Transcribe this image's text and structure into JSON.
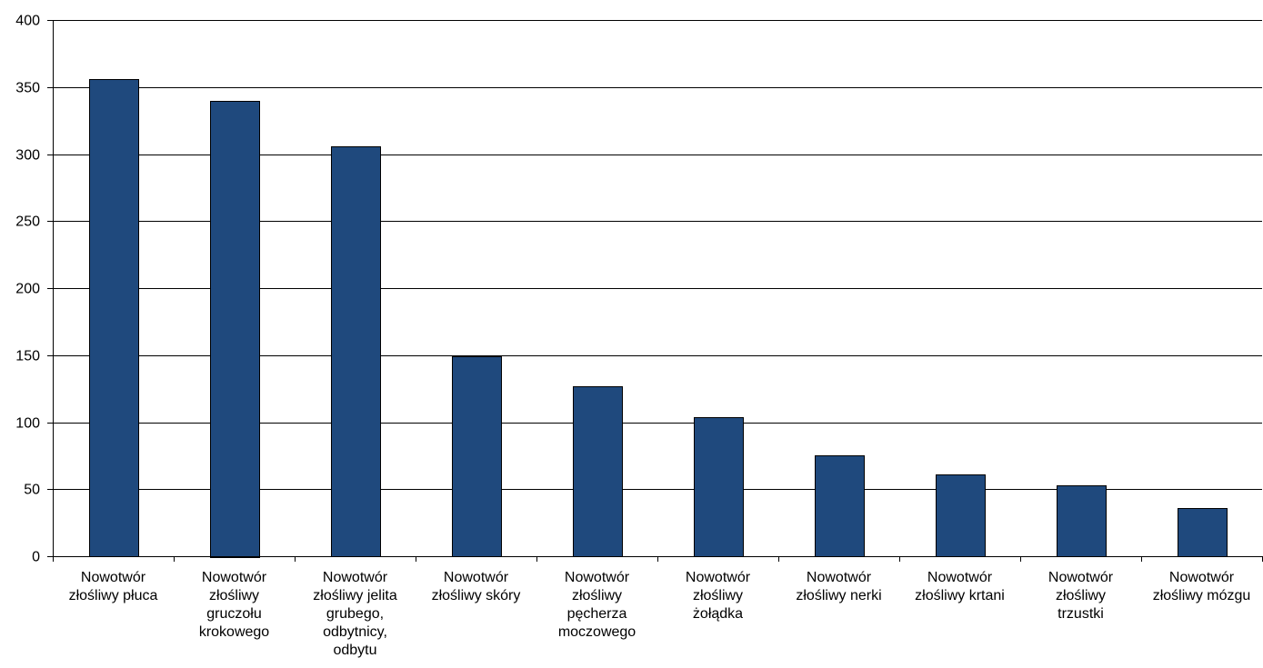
{
  "chart_data": {
    "type": "bar",
    "title": "",
    "xlabel": "",
    "ylabel": "",
    "ylim": [
      0,
      400
    ],
    "yticks": [
      0,
      50,
      100,
      150,
      200,
      250,
      300,
      350,
      400
    ],
    "ytick_labels": [
      "0",
      "50",
      "100",
      "150",
      "200",
      "250",
      "300",
      "350",
      "400"
    ],
    "grid": true,
    "legend": "none",
    "bar_color": "#1F497D",
    "categories": [
      [
        "Nowotwór",
        "złośliwy płuca"
      ],
      [
        "Nowotwór",
        "złośliwy",
        "gruczołu",
        "krokowego"
      ],
      [
        "Nowotwór",
        "złośliwy jelita",
        "grubego,",
        "odbytnicy,",
        "odbytu"
      ],
      [
        "Nowotwór",
        "złośliwy skóry"
      ],
      [
        "Nowotwór",
        "złośliwy",
        "pęcherza",
        "moczowego"
      ],
      [
        "Nowotwór",
        "złośliwy",
        "żołądka"
      ],
      [
        "Nowotwór",
        "złośliwy nerki"
      ],
      [
        "Nowotwór",
        "złośliwy krtani"
      ],
      [
        "Nowotwór",
        "złośliwy",
        "trzustki"
      ],
      [
        "Nowotwór",
        "złośliwy mózgu"
      ]
    ],
    "values": [
      356,
      340,
      306,
      149,
      127,
      104,
      75,
      61,
      53,
      36
    ]
  }
}
